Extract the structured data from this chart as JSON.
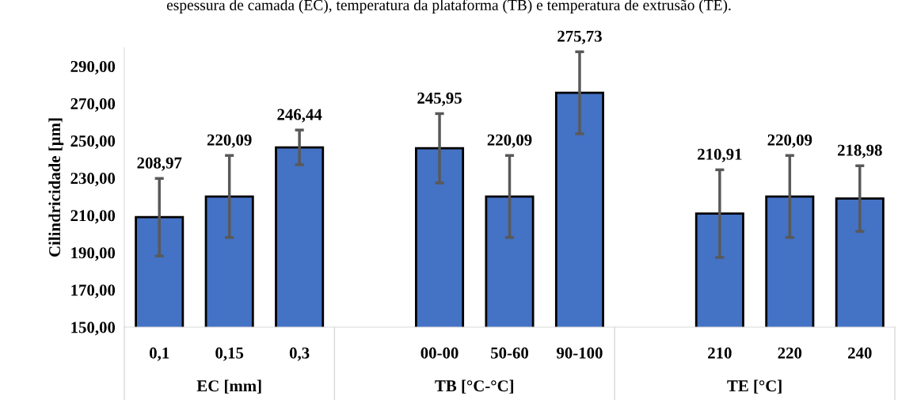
{
  "chart_data": {
    "type": "bar",
    "title": "espessura de camada (EC), temperatura da plataforma (TB) e temperatura de extrusão (TE).",
    "ylabel": "Cilindricidade [µm]",
    "categories": [
      "0,1",
      "0,15",
      "0,3",
      null,
      "00-00",
      "50-60",
      "90-100",
      null,
      "210",
      "220",
      "240"
    ],
    "values": [
      208.97,
      220.09,
      246.44,
      null,
      245.95,
      220.09,
      275.73,
      null,
      210.91,
      220.09,
      218.98
    ],
    "errors": [
      20.8,
      22,
      9.3,
      null,
      18.6,
      22,
      22,
      null,
      23.5,
      22,
      17.6
    ],
    "value_labels": [
      "208,97",
      "220,09",
      "246,44",
      null,
      "245,95",
      "220,09",
      "275,73",
      null,
      "210,91",
      "220,09",
      "218,98"
    ],
    "color": "#4472c4",
    "annotations": [
      "EC [mm]",
      "TB [°C-°C]",
      "TE [°C]"
    ],
    "yticks": [
      {
        "value": 150,
        "label": "150,00"
      },
      {
        "value": 170,
        "label": "170,00"
      },
      {
        "value": 190,
        "label": "190,00"
      },
      {
        "value": 210,
        "label": "210,00"
      },
      {
        "value": 230,
        "label": "230,00"
      },
      {
        "value": 250,
        "label": "250,00"
      },
      {
        "value": 270,
        "label": "270,00"
      },
      {
        "value": 290,
        "label": "290,00"
      }
    ],
    "ylim": [
      150,
      300
    ],
    "grid": false,
    "legend": false
  }
}
